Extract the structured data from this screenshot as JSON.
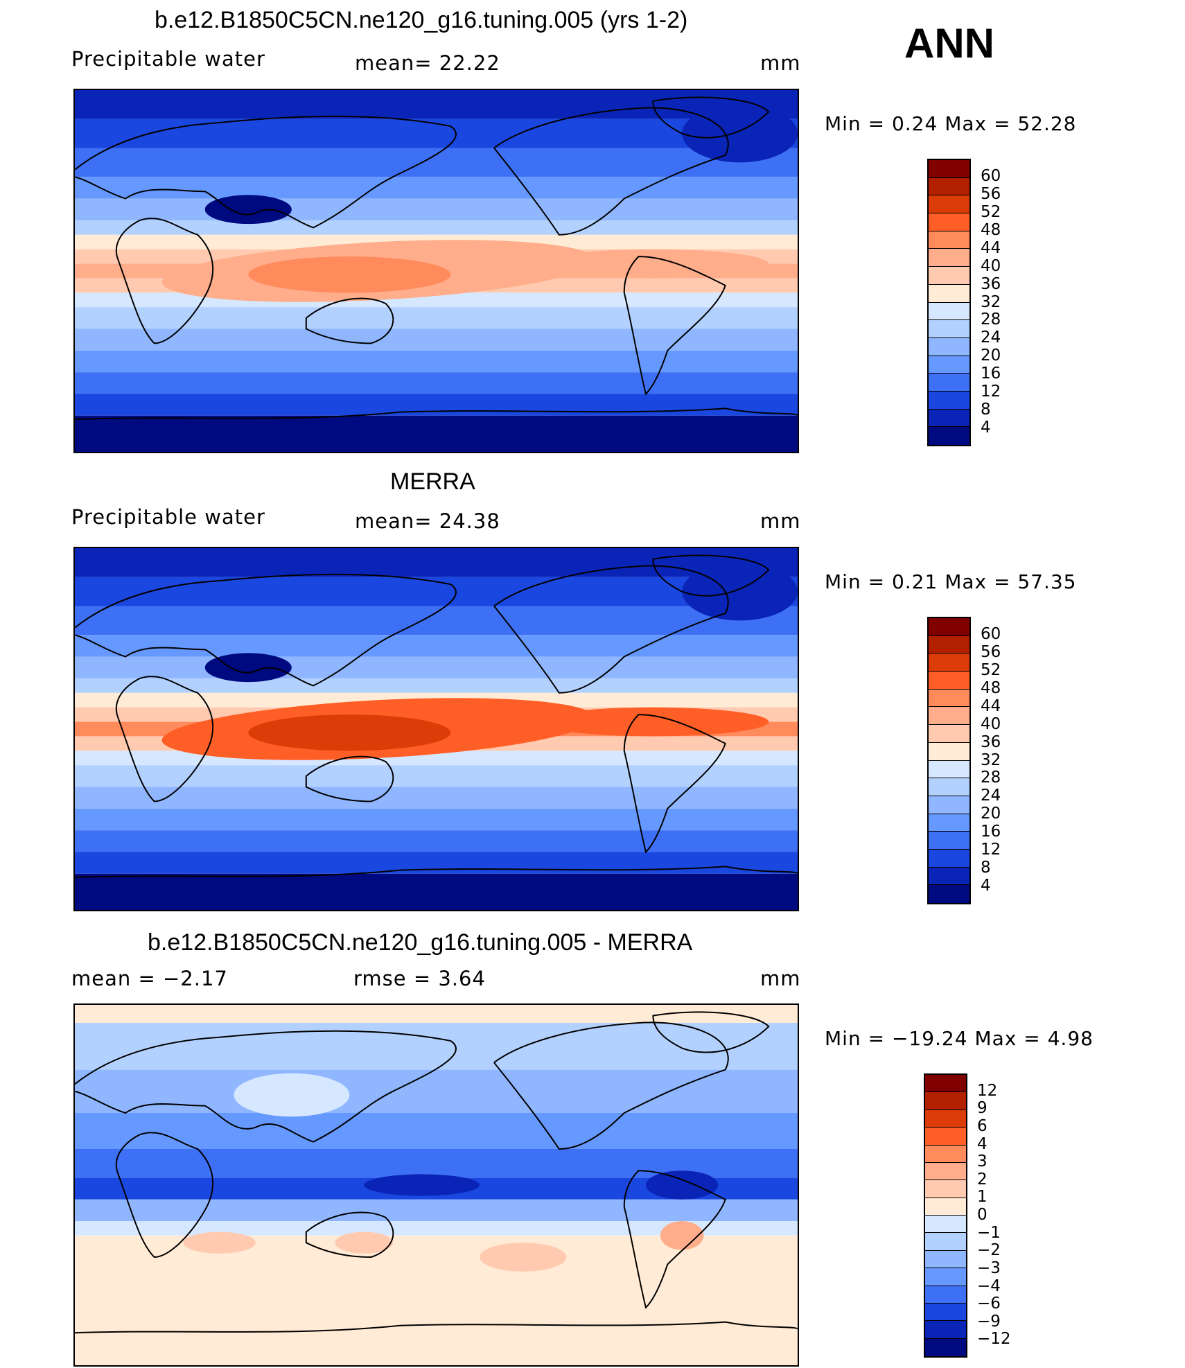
{
  "season": "ANN",
  "panels": [
    {
      "title": "b.e12.B1850C5CN.ne120_g16.tuning.005 (yrs 1-2)",
      "left_label": "Precipitable  water",
      "center_label": "mean=   22.22",
      "units": "mm",
      "stats": "Min  =     0.24  Max  =    52.28",
      "colorbar_labels": [
        "60",
        "56",
        "52",
        "48",
        "44",
        "40",
        "36",
        "32",
        "28",
        "24",
        "20",
        "16",
        "12",
        "8",
        "4"
      ],
      "palette": "abs"
    },
    {
      "title": "MERRA",
      "left_label": "Precipitable  water",
      "center_label": "mean=   24.38",
      "units": "mm",
      "stats": "Min  =     0.21  Max  =    57.35",
      "colorbar_labels": [
        "60",
        "56",
        "52",
        "48",
        "44",
        "40",
        "36",
        "32",
        "28",
        "24",
        "20",
        "16",
        "12",
        "8",
        "4"
      ],
      "palette": "abs"
    },
    {
      "title": "b.e12.B1850C5CN.ne120_g16.tuning.005 - MERRA",
      "left_label": "mean  =    −2.17",
      "center_label": "rmse  =     3.64",
      "units": "mm",
      "stats": "Min  = −19.24  Max  =     4.98",
      "colorbar_labels": [
        "12",
        "9",
        "6",
        "4",
        "3",
        "2",
        "1",
        "0",
        "−1",
        "−2",
        "−3",
        "−4",
        "−6",
        "−9",
        "−12"
      ],
      "palette": "diff"
    }
  ],
  "colors": {
    "abs_palette": [
      "#800000",
      "#b22000",
      "#dc3c07",
      "#ff5f26",
      "#ff8a5c",
      "#ffad8a",
      "#ffcab0",
      "#ffebd6",
      "#d6e8ff",
      "#b3d1ff",
      "#8fb6ff",
      "#6699ff",
      "#3d70f5",
      "#1a47e0",
      "#0a24b8",
      "#000a80"
    ],
    "diff_palette": [
      "#800000",
      "#b22000",
      "#dc3c07",
      "#ff5f26",
      "#ff8a5c",
      "#ffad8a",
      "#ffcab0",
      "#ffebd6",
      "#d6e8ff",
      "#b3d1ff",
      "#8fb6ff",
      "#6699ff",
      "#3d70f5",
      "#1a47e0",
      "#0a24b8",
      "#000a80"
    ]
  }
}
